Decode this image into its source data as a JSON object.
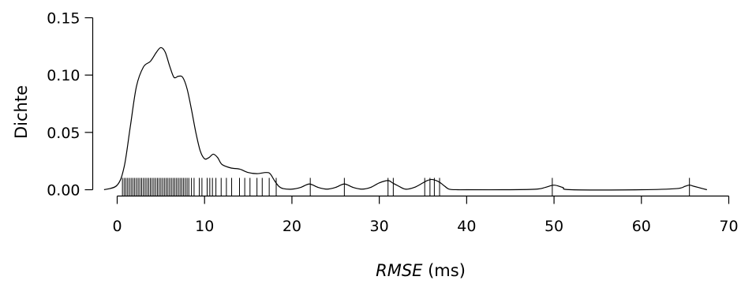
{
  "chart_data": {
    "type": "line",
    "title": "",
    "xlabel_var": "RMSE",
    "xlabel_unit": " (ms)",
    "ylabel": "Dichte",
    "xlim": [
      0,
      70
    ],
    "ylim": [
      0,
      0.15
    ],
    "x_ticks": [
      0,
      10,
      20,
      30,
      40,
      50,
      60,
      70
    ],
    "x_tick_labels": [
      "0",
      "10",
      "20",
      "30",
      "40",
      "50",
      "60",
      "70"
    ],
    "y_ticks": [
      0,
      0.05,
      0.1,
      0.15
    ],
    "y_tick_labels": [
      "0.00",
      "0.05",
      "0.10",
      "0.15"
    ],
    "grid": false,
    "series": [
      {
        "x": [
          -1.5,
          0,
          0.8,
          1.5,
          2.2,
          3.0,
          3.8,
          4.5,
          5.0,
          5.5,
          6.0,
          6.5,
          7.0,
          7.5,
          8.0,
          8.5,
          9.0,
          9.5,
          10.0,
          10.5,
          11.0,
          11.5,
          12.0,
          13.0,
          14.0,
          15.0,
          16.0,
          17.0,
          17.5,
          18.0,
          18.5,
          19.0,
          20.0,
          21.0,
          22.0,
          23.0,
          24.0,
          25.0,
          26.0,
          27.0,
          28.0,
          29.0,
          30.0,
          31.0,
          31.5,
          32.0,
          33.0,
          34.0,
          35.0,
          35.5,
          36.0,
          36.5,
          37.0,
          37.5,
          38.0,
          39.0,
          40.0,
          45.0,
          48.0,
          49.0,
          50.0,
          51.0,
          52.0,
          60.0,
          64.0,
          65.0,
          65.5,
          66.0,
          67.0,
          67.5
        ],
        "y": [
          0.0,
          0.004,
          0.02,
          0.055,
          0.09,
          0.107,
          0.112,
          0.12,
          0.124,
          0.12,
          0.108,
          0.098,
          0.099,
          0.098,
          0.088,
          0.07,
          0.05,
          0.034,
          0.027,
          0.028,
          0.031,
          0.028,
          0.022,
          0.019,
          0.018,
          0.015,
          0.014,
          0.015,
          0.014,
          0.008,
          0.003,
          0.001,
          0.0005,
          0.002,
          0.005,
          0.002,
          0.0005,
          0.002,
          0.005,
          0.002,
          0.0005,
          0.002,
          0.006,
          0.008,
          0.006,
          0.004,
          0.0005,
          0.002,
          0.006,
          0.008,
          0.009,
          0.008,
          0.006,
          0.003,
          0.0005,
          0.0,
          0.0,
          0.0,
          0.0005,
          0.002,
          0.004,
          0.002,
          0.0,
          0.0,
          0.001,
          0.003,
          0.004,
          0.003,
          0.001,
          0.0
        ]
      }
    ],
    "rug": [
      0.6,
      0.8,
      1.0,
      1.2,
      1.4,
      1.6,
      1.8,
      2.0,
      2.2,
      2.4,
      2.6,
      2.8,
      3.0,
      3.2,
      3.4,
      3.6,
      3.8,
      4.0,
      4.2,
      4.4,
      4.6,
      4.8,
      5.0,
      5.2,
      5.4,
      5.6,
      5.8,
      6.0,
      6.2,
      6.4,
      6.6,
      6.8,
      7.0,
      7.2,
      7.4,
      7.6,
      7.8,
      8.0,
      8.2,
      8.5,
      8.8,
      9.4,
      9.7,
      10.3,
      10.6,
      10.9,
      11.3,
      11.9,
      12.5,
      13.1,
      14.0,
      14.6,
      15.2,
      16.0,
      16.6,
      17.4,
      18.2,
      22.1,
      26.0,
      31.0,
      31.6,
      35.2,
      35.8,
      36.3,
      36.9,
      49.8,
      65.5
    ]
  }
}
